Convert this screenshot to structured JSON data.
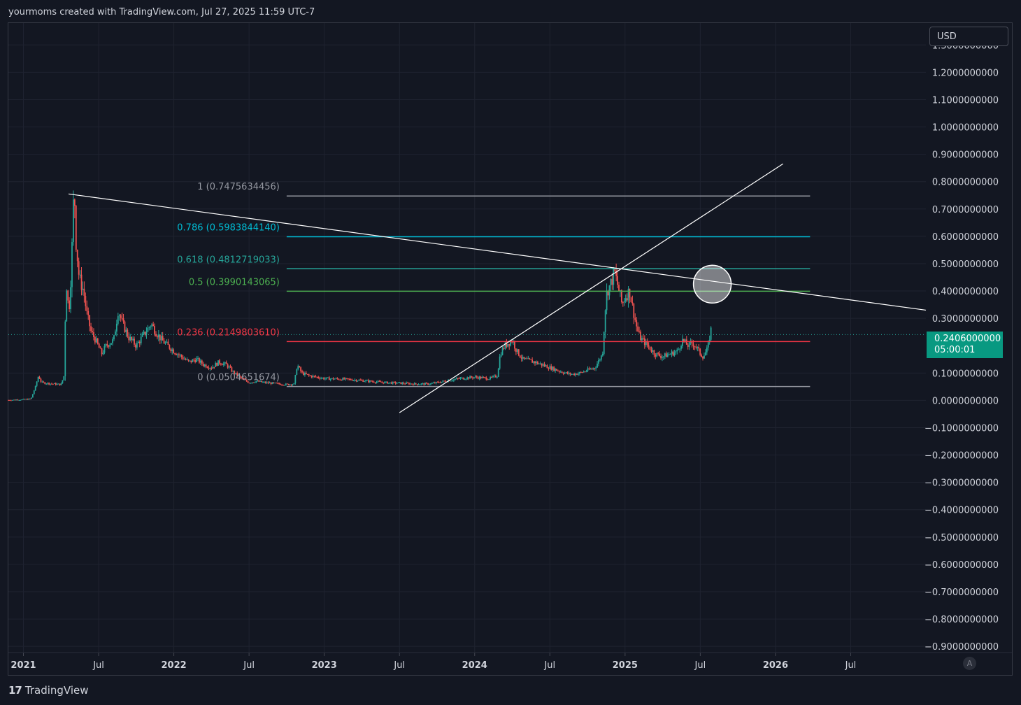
{
  "header": {
    "caption": "yourmoms created with TradingView.com, Jul 27, 2025 11:59 UTC-7"
  },
  "currency_button": {
    "label": "USD"
  },
  "price_tag": {
    "price": "0.2406000000",
    "countdown": "05:00:01"
  },
  "auto_button": {
    "label": "A"
  },
  "logo": {
    "text": "TradingView",
    "mark": "17"
  },
  "colors": {
    "background": "#131722",
    "grid": "#1f2330",
    "up": "#26a69a",
    "down": "#ef5350",
    "fib_1": "#9598a1",
    "fib_786": "#00bcd4",
    "fib_618": "#26a69a",
    "fib_5": "#4caf50",
    "fib_236": "#f23645",
    "fib_0": "#9598a1",
    "trendline": "#ffffff",
    "axis_text": "#d1d4dc"
  },
  "chart_data": {
    "type": "candlestick",
    "y_axis": {
      "ticks": [
        "1.3000000000",
        "1.2000000000",
        "1.1000000000",
        "1.0000000000",
        "0.9000000000",
        "0.8000000000",
        "0.7000000000",
        "0.6000000000",
        "0.5000000000",
        "0.4000000000",
        "0.3000000000",
        "0.1000000000",
        "0.0000000000",
        "−0.1000000000",
        "−0.2000000000",
        "−0.3000000000",
        "−0.4000000000",
        "−0.5000000000",
        "−0.6000000000",
        "−0.7000000000",
        "−0.8000000000",
        "−0.9000000000"
      ],
      "tick_values": [
        1.3,
        1.2,
        1.1,
        1.0,
        0.9,
        0.8,
        0.7,
        0.6,
        0.5,
        0.4,
        0.3,
        0.1,
        0.0,
        -0.1,
        -0.2,
        -0.3,
        -0.4,
        -0.5,
        -0.6,
        -0.7,
        -0.8,
        -0.9
      ],
      "range": [
        -0.92,
        1.38
      ]
    },
    "x_axis": {
      "ticks": [
        "2021",
        "Jul",
        "2022",
        "Jul",
        "2023",
        "Jul",
        "2024",
        "Jul",
        "2025",
        "Jul",
        "2026",
        "Jul"
      ],
      "tick_dates": [
        2021.0,
        2021.5,
        2022.0,
        2022.5,
        2023.0,
        2023.5,
        2024.0,
        2024.5,
        2025.0,
        2025.5,
        2026.0,
        2026.5
      ],
      "bold": [
        true,
        false,
        true,
        false,
        true,
        false,
        true,
        false,
        true,
        false,
        true,
        false
      ],
      "range": [
        2020.9,
        2027.0
      ]
    },
    "last_price": 0.2406,
    "fib_levels": [
      {
        "label": "1 (0.7475634456)",
        "value": 0.7475634456,
        "color": "#9598a1"
      },
      {
        "label": "0.786 (0.5983844140)",
        "value": 0.598384414,
        "color": "#00bcd4"
      },
      {
        "label": "0.618 (0.4812719033)",
        "value": 0.4812719033,
        "color": "#26a69a"
      },
      {
        "label": "0.5 (0.3990143065)",
        "value": 0.3990143065,
        "color": "#4caf50"
      },
      {
        "label": "0.236 (0.2149803610)",
        "value": 0.214980361,
        "color": "#f23645"
      },
      {
        "label": "0 (0.0504651674)",
        "value": 0.0504651674,
        "color": "#9598a1"
      }
    ],
    "fib_x_range": [
      2022.75,
      2026.23
    ],
    "trendlines": [
      {
        "from": [
          2021.3,
          0.755
        ],
        "to": [
          2027.0,
          0.33
        ]
      },
      {
        "from": [
          2023.5,
          -0.045
        ],
        "to": [
          2026.05,
          0.865
        ]
      }
    ],
    "highlight_circle": {
      "x": 2025.58,
      "y": 0.425
    },
    "price_series": [
      [
        2020.9,
        0.001
      ],
      [
        2021.0,
        0.003
      ],
      [
        2021.05,
        0.005
      ],
      [
        2021.08,
        0.05
      ],
      [
        2021.1,
        0.09
      ],
      [
        2021.12,
        0.065
      ],
      [
        2021.2,
        0.06
      ],
      [
        2021.25,
        0.058
      ],
      [
        2021.27,
        0.09
      ],
      [
        2021.28,
        0.35
      ],
      [
        2021.29,
        0.45
      ],
      [
        2021.3,
        0.3
      ],
      [
        2021.32,
        0.5
      ],
      [
        2021.33,
        0.71
      ],
      [
        2021.34,
        0.74
      ],
      [
        2021.35,
        0.58
      ],
      [
        2021.37,
        0.45
      ],
      [
        2021.4,
        0.4
      ],
      [
        2021.42,
        0.32
      ],
      [
        2021.45,
        0.25
      ],
      [
        2021.48,
        0.22
      ],
      [
        2021.52,
        0.17
      ],
      [
        2021.55,
        0.2
      ],
      [
        2021.6,
        0.22
      ],
      [
        2021.63,
        0.33
      ],
      [
        2021.66,
        0.28
      ],
      [
        2021.7,
        0.23
      ],
      [
        2021.75,
        0.2
      ],
      [
        2021.8,
        0.24
      ],
      [
        2021.85,
        0.28
      ],
      [
        2021.88,
        0.25
      ],
      [
        2021.92,
        0.22
      ],
      [
        2022.0,
        0.18
      ],
      [
        2022.05,
        0.16
      ],
      [
        2022.1,
        0.14
      ],
      [
        2022.15,
        0.15
      ],
      [
        2022.2,
        0.13
      ],
      [
        2022.25,
        0.12
      ],
      [
        2022.3,
        0.14
      ],
      [
        2022.35,
        0.13
      ],
      [
        2022.4,
        0.1
      ],
      [
        2022.45,
        0.08
      ],
      [
        2022.5,
        0.065
      ],
      [
        2022.55,
        0.07
      ],
      [
        2022.6,
        0.065
      ],
      [
        2022.7,
        0.06
      ],
      [
        2022.75,
        0.058
      ],
      [
        2022.8,
        0.06
      ],
      [
        2022.82,
        0.13
      ],
      [
        2022.85,
        0.1
      ],
      [
        2022.9,
        0.09
      ],
      [
        2022.95,
        0.085
      ],
      [
        2023.0,
        0.08
      ],
      [
        2023.1,
        0.078
      ],
      [
        2023.2,
        0.075
      ],
      [
        2023.3,
        0.07
      ],
      [
        2023.4,
        0.065
      ],
      [
        2023.5,
        0.063
      ],
      [
        2023.6,
        0.06
      ],
      [
        2023.7,
        0.06
      ],
      [
        2023.8,
        0.07
      ],
      [
        2023.9,
        0.08
      ],
      [
        2024.0,
        0.085
      ],
      [
        2024.1,
        0.08
      ],
      [
        2024.15,
        0.09
      ],
      [
        2024.17,
        0.17
      ],
      [
        2024.2,
        0.2
      ],
      [
        2024.25,
        0.22
      ],
      [
        2024.28,
        0.18
      ],
      [
        2024.32,
        0.15
      ],
      [
        2024.4,
        0.14
      ],
      [
        2024.45,
        0.13
      ],
      [
        2024.5,
        0.12
      ],
      [
        2024.55,
        0.11
      ],
      [
        2024.6,
        0.1
      ],
      [
        2024.65,
        0.095
      ],
      [
        2024.7,
        0.1
      ],
      [
        2024.75,
        0.11
      ],
      [
        2024.8,
        0.12
      ],
      [
        2024.85,
        0.17
      ],
      [
        2024.87,
        0.35
      ],
      [
        2024.88,
        0.4
      ],
      [
        2024.9,
        0.42
      ],
      [
        2024.93,
        0.47
      ],
      [
        2024.96,
        0.4
      ],
      [
        2024.98,
        0.35
      ],
      [
        2025.0,
        0.38
      ],
      [
        2025.03,
        0.4
      ],
      [
        2025.05,
        0.34
      ],
      [
        2025.08,
        0.26
      ],
      [
        2025.1,
        0.23
      ],
      [
        2025.15,
        0.2
      ],
      [
        2025.2,
        0.17
      ],
      [
        2025.25,
        0.16
      ],
      [
        2025.3,
        0.17
      ],
      [
        2025.35,
        0.18
      ],
      [
        2025.38,
        0.22
      ],
      [
        2025.42,
        0.2
      ],
      [
        2025.45,
        0.21
      ],
      [
        2025.48,
        0.19
      ],
      [
        2025.5,
        0.17
      ],
      [
        2025.52,
        0.16
      ],
      [
        2025.55,
        0.19
      ],
      [
        2025.57,
        0.26
      ],
      [
        2025.58,
        0.24
      ]
    ]
  }
}
